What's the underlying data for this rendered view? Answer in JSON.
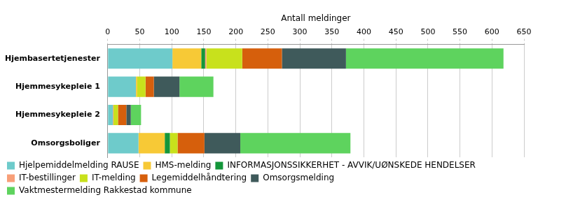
{
  "chart_data": {
    "type": "bar",
    "orientation": "horizontal",
    "stacked": true,
    "xlabel": "Antall meldinger",
    "categories": [
      "Hjembasertetjenester",
      "Hjemmesykepleie 1",
      "Hjemmesykepleie 2",
      "Omsorgsboliger"
    ],
    "series": [
      {
        "name": "Hjelpemiddelmelding RAUSE",
        "color": "#6ecbcb",
        "values": [
          101,
          44,
          8,
          48
        ]
      },
      {
        "name": "HMS-melding",
        "color": "#f7c936",
        "values": [
          45,
          2,
          0,
          41
        ]
      },
      {
        "name": "INFORMASJONSSIKKERHET - AVVIK/UØNSKEDE HENDELSER",
        "color": "#14963a",
        "values": [
          6,
          0,
          0,
          8
        ]
      },
      {
        "name": "IT-bestillinger",
        "color": "#f89f78",
        "values": [
          2,
          0,
          1,
          0
        ]
      },
      {
        "name": "IT-melding",
        "color": "#c8e11c",
        "values": [
          56,
          13,
          7,
          12
        ]
      },
      {
        "name": "Legemiddelhåndtering",
        "color": "#d65f0c",
        "values": [
          62,
          13,
          13,
          42
        ]
      },
      {
        "name": "Omsorgsmelding",
        "color": "#3f5a5b",
        "values": [
          100,
          40,
          7,
          56
        ]
      },
      {
        "name": "Vaktmestermelding Rakkestad kommune",
        "color": "#5ed35e",
        "values": [
          246,
          53,
          16,
          172
        ]
      }
    ],
    "xlim": [
      0,
      650
    ],
    "xticks": [
      0,
      50,
      100,
      150,
      200,
      250,
      300,
      350,
      400,
      450,
      500,
      550,
      600,
      650
    ],
    "grid": true,
    "legend": "bottom"
  }
}
